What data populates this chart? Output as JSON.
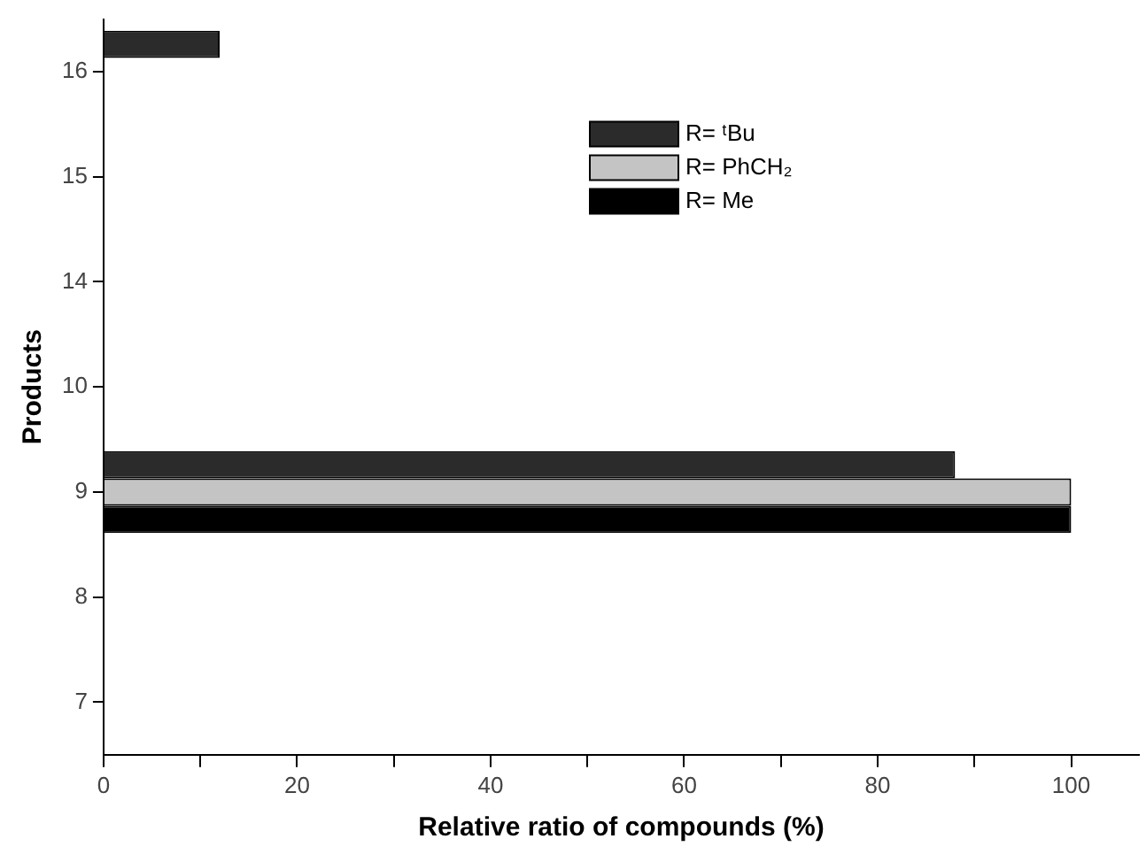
{
  "chart_data": {
    "type": "bar",
    "orientation": "horizontal",
    "xlabel": "Relative ratio of compounds (%)",
    "ylabel": "Products",
    "categories": [
      "16",
      "15",
      "14",
      "10",
      "9",
      "8",
      "7"
    ],
    "series": [
      {
        "name": "R= ᵗBu",
        "color": "#2b2b2b",
        "values": [
          12,
          null,
          null,
          null,
          88,
          null,
          null
        ]
      },
      {
        "name": "R= PhCH₂",
        "color": "#c4c4c4",
        "values": [
          null,
          null,
          null,
          null,
          100,
          null,
          null
        ]
      },
      {
        "name": "R= Me",
        "color": "#000000",
        "values": [
          null,
          null,
          null,
          null,
          100,
          null,
          null
        ]
      }
    ],
    "xlim": [
      0,
      107
    ],
    "xticks": [
      0,
      {
        "value": 10,
        "label": null
      },
      20,
      {
        "value": 30,
        "label": null
      },
      40,
      {
        "value": 50,
        "label": null
      },
      60,
      {
        "value": 70,
        "label": null
      },
      80,
      {
        "value": 90,
        "label": null
      },
      100
    ],
    "grid": false,
    "legend": "top right"
  }
}
